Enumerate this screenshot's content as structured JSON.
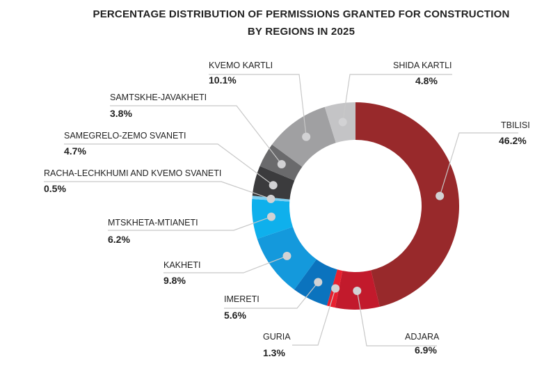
{
  "chart_data": {
    "type": "pie",
    "subtype": "donut",
    "title_line1": "PERCENTAGE DISTRIBUTION OF PERMISSIONS GRANTED FOR CONSTRUCTION",
    "title_line2": "BY REGIONS IN 2025",
    "unit": "%",
    "slices": [
      {
        "label": "TBILISI",
        "value": 46.2,
        "value_text": "46.2%",
        "color": "#98292b"
      },
      {
        "label": "ADJARA",
        "value": 6.9,
        "value_text": "6.9%",
        "color": "#c21a2c"
      },
      {
        "label": "GURIA",
        "value": 1.3,
        "value_text": "1.3%",
        "color": "#e8202f"
      },
      {
        "label": "IMERETI",
        "value": 5.6,
        "value_text": "5.6%",
        "color": "#0b73be"
      },
      {
        "label": "KAKHETI",
        "value": 9.8,
        "value_text": "9.8%",
        "color": "#1499dc"
      },
      {
        "label": "MTSKHETA-MTIANETI",
        "value": 6.2,
        "value_text": "6.2%",
        "color": "#0fb0ec"
      },
      {
        "label": "RACHA-LECHKHUMI AND KVEMO SVANETI",
        "value": 0.5,
        "value_text": "0.5%",
        "color": "#7fcff0"
      },
      {
        "label": "SAMEGRELO-ZEMO SVANETI",
        "value": 4.7,
        "value_text": "4.7%",
        "color": "#3b3b3d"
      },
      {
        "label": "SAMTSKHE-JAVAKHETI",
        "value": 3.8,
        "value_text": "3.8%",
        "color": "#6a6a6c"
      },
      {
        "label": "KVEMO KARTLI",
        "value": 10.1,
        "value_text": "10.1%",
        "color": "#a0a0a2"
      },
      {
        "label": "SHIDA KARTLI",
        "value": 4.8,
        "value_text": "4.8%",
        "color": "#c4c4c6"
      }
    ]
  }
}
